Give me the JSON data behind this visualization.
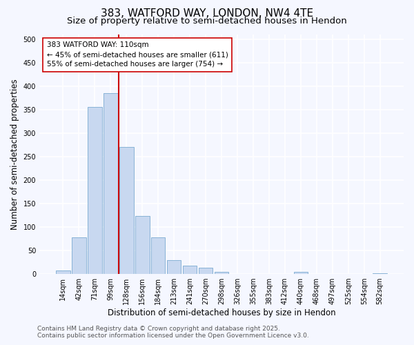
{
  "title_line1": "383, WATFORD WAY, LONDON, NW4 4TE",
  "title_line2": "Size of property relative to semi-detached houses in Hendon",
  "xlabel": "Distribution of semi-detached houses by size in Hendon",
  "ylabel": "Number of semi-detached properties",
  "categories": [
    "14sqm",
    "42sqm",
    "71sqm",
    "99sqm",
    "128sqm",
    "156sqm",
    "184sqm",
    "213sqm",
    "241sqm",
    "270sqm",
    "298sqm",
    "326sqm",
    "355sqm",
    "383sqm",
    "412sqm",
    "440sqm",
    "468sqm",
    "497sqm",
    "525sqm",
    "554sqm",
    "582sqm"
  ],
  "values": [
    8,
    78,
    355,
    385,
    270,
    123,
    78,
    30,
    18,
    13,
    4,
    0,
    0,
    0,
    0,
    5,
    0,
    0,
    0,
    0,
    2
  ],
  "bar_color": "#c8d8f0",
  "bar_edge_color": "#7aaad0",
  "vline_x": 3.5,
  "vline_color": "#cc0000",
  "annotation_text": "383 WATFORD WAY: 110sqm\n← 45% of semi-detached houses are smaller (611)\n55% of semi-detached houses are larger (754) →",
  "annotation_box_color": "#ffffff",
  "annotation_box_edge": "#cc0000",
  "ylim": [
    0,
    510
  ],
  "yticks": [
    0,
    50,
    100,
    150,
    200,
    250,
    300,
    350,
    400,
    450,
    500
  ],
  "footer_line1": "Contains HM Land Registry data © Crown copyright and database right 2025.",
  "footer_line2": "Contains public sector information licensed under the Open Government Licence v3.0.",
  "background_color": "#f5f7ff",
  "plot_background": "#f5f7ff",
  "grid_color": "#ffffff",
  "title_fontsize": 11,
  "subtitle_fontsize": 9.5,
  "axis_label_fontsize": 8.5,
  "tick_fontsize": 7,
  "footer_fontsize": 6.5,
  "annotation_fontsize": 7.5
}
